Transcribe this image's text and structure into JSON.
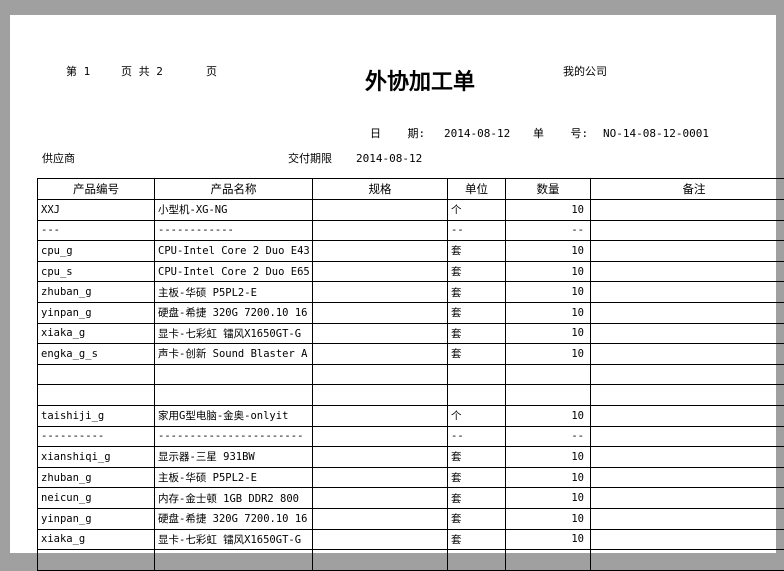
{
  "header": {
    "page_label_1": "第 1",
    "page_label_2": "页 共 2",
    "page_label_3": "页",
    "title": "外协加工单",
    "company": "我的公司",
    "date_label": "日    期:",
    "date_value": "2014-08-12",
    "order_no_label": "单    号:",
    "order_no_value": "NO-14-08-12-0001",
    "supplier_label": "供应商",
    "deadline_label": "交付期限",
    "deadline_value": "2014-08-12"
  },
  "table": {
    "columns": [
      "产品编号",
      "产品名称",
      "规格",
      "单位",
      "数量",
      "备注"
    ],
    "rows": [
      [
        "XXJ",
        "小型机-XG-NG",
        "",
        "个",
        "10",
        ""
      ],
      [
        "---",
        "------------",
        "",
        "--",
        "--",
        ""
      ],
      [
        "cpu_g",
        "CPU-Intel Core 2 Duo E43",
        "",
        "套",
        "10",
        ""
      ],
      [
        "cpu_s",
        "CPU-Intel Core 2 Duo E65",
        "",
        "套",
        "10",
        ""
      ],
      [
        "zhuban_g",
        "主板-华硕 P5PL2-E",
        "",
        "套",
        "10",
        ""
      ],
      [
        "yinpan_g",
        "硬盘-希捷 320G 7200.10 16",
        "",
        "套",
        "10",
        ""
      ],
      [
        "xiaka_g",
        "显卡-七彩虹 镭风X1650GT-G",
        "",
        "套",
        "10",
        ""
      ],
      [
        "engka_g_s",
        "声卡-创新 Sound Blaster A",
        "",
        "套",
        "10",
        ""
      ],
      [
        "",
        "",
        "",
        "",
        "",
        ""
      ],
      [
        "",
        "",
        "",
        "",
        "",
        ""
      ],
      [
        "taishiji_g",
        "家用G型电脑-金奥-onlyit",
        "",
        "个",
        "10",
        ""
      ],
      [
        "----------",
        "-----------------------",
        "",
        "--",
        "--",
        ""
      ],
      [
        "xianshiqi_g",
        "显示器-三星 931BW",
        "",
        "套",
        "10",
        ""
      ],
      [
        "zhuban_g",
        "主板-华硕 P5PL2-E",
        "",
        "套",
        "10",
        ""
      ],
      [
        "neicun_g",
        "内存-金士顿 1GB DDR2 800",
        "",
        "套",
        "10",
        ""
      ],
      [
        "yinpan_g",
        "硬盘-希捷 320G 7200.10 16",
        "",
        "套",
        "10",
        ""
      ],
      [
        "xiaka_g",
        "显卡-七彩虹 镭风X1650GT-G",
        "",
        "套",
        "10",
        ""
      ],
      [
        "",
        "",
        "",
        "",
        "",
        ""
      ]
    ]
  }
}
